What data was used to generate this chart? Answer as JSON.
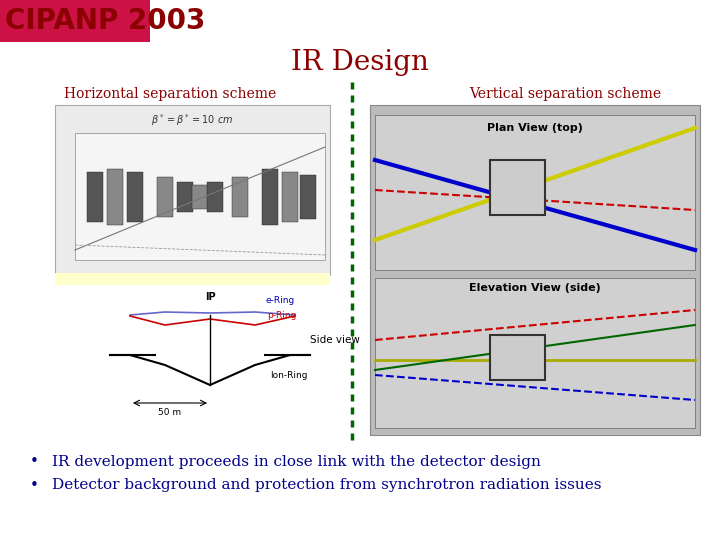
{
  "title": "IR Design",
  "title_color": "#8B0000",
  "title_fontsize": 20,
  "logo_text": "CIPANP 2003",
  "logo_bg": "#CC1144",
  "logo_text_color": "#8B0000",
  "logo_fontsize": 20,
  "left_label": "Horizontal separation scheme",
  "right_label": "Vertical separation scheme",
  "label_color": "#8B0000",
  "label_fontsize": 10,
  "divider_color": "#006600",
  "bullet_color": "#00008B",
  "bullet_fontsize": 11,
  "bullets": [
    "IR development proceeds in close link with the detector design",
    "Detector background and protection from synchrotron radiation issues"
  ],
  "bg_color": "#FFFFFF",
  "left_img_bg": "#E8E8E8",
  "right_img_bg": "#C8C8C8",
  "yellow_bar_color": "#FFFFCC"
}
